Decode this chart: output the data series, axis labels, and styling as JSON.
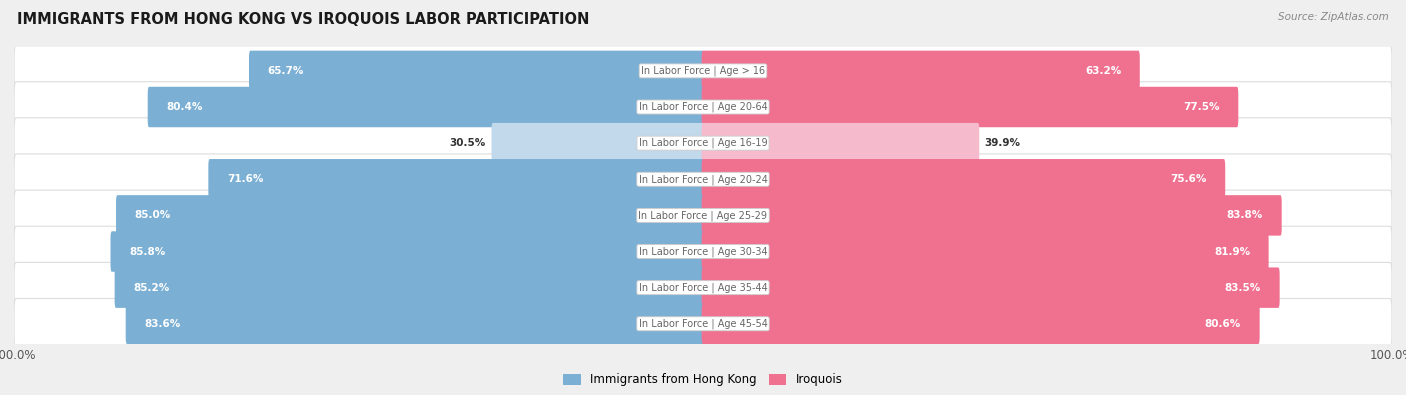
{
  "title": "IMMIGRANTS FROM HONG KONG VS IROQUOIS LABOR PARTICIPATION",
  "source": "Source: ZipAtlas.com",
  "categories": [
    "In Labor Force | Age > 16",
    "In Labor Force | Age 20-64",
    "In Labor Force | Age 16-19",
    "In Labor Force | Age 20-24",
    "In Labor Force | Age 25-29",
    "In Labor Force | Age 30-34",
    "In Labor Force | Age 35-44",
    "In Labor Force | Age 45-54"
  ],
  "hk_values": [
    65.7,
    80.4,
    30.5,
    71.6,
    85.0,
    85.8,
    85.2,
    83.6
  ],
  "iro_values": [
    63.2,
    77.5,
    39.9,
    75.6,
    83.8,
    81.9,
    83.5,
    80.6
  ],
  "hk_color": "#7BAFD4",
  "hk_color_light": "#C2D9EC",
  "iro_color": "#F07090",
  "iro_color_light": "#F5BBCC",
  "bg_color": "#EFEFEF",
  "row_bg_color": "#FFFFFF",
  "row_edge_color": "#DDDDDD",
  "label_text_color": "#666666",
  "value_text_light": "#333333",
  "max_val": 100.0,
  "legend_hk": "Immigrants from Hong Kong",
  "legend_iro": "Iroquois"
}
